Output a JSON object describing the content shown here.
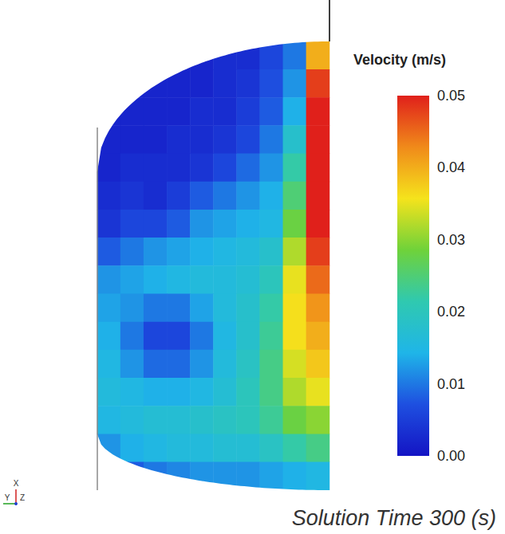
{
  "chart_data": {
    "type": "heatmap",
    "tick_labels": false,
    "annotations": [
      "Solution Time 300 (s)"
    ],
    "axis_triad": [
      "X",
      "Y",
      "Z"
    ],
    "colorbar": {
      "title": "Velocity (m/s)",
      "range": [
        0,
        0.05
      ],
      "ticks": [
        {
          "value": 0,
          "label": "0.00"
        },
        {
          "value": 0.01,
          "label": "0.01"
        },
        {
          "value": 0.02,
          "label": "0.02"
        },
        {
          "value": 0.03,
          "label": "0.03"
        },
        {
          "value": 0.04,
          "label": "0.04"
        },
        {
          "value": 0.05,
          "label": "0.05"
        }
      ]
    },
    "cells": [
      [
        null,
        null,
        null,
        0.002,
        0.002,
        0.003,
        0.003,
        0.006,
        0.01,
        0.04
      ],
      [
        null,
        0.002,
        0.002,
        0.002,
        0.002,
        0.003,
        0.004,
        0.007,
        0.012,
        0.048
      ],
      [
        0.002,
        0.002,
        0.002,
        0.002,
        0.003,
        0.003,
        0.005,
        0.008,
        0.014,
        0.05
      ],
      [
        0.002,
        0.002,
        0.002,
        0.003,
        0.003,
        0.004,
        0.006,
        0.01,
        0.018,
        0.05
      ],
      [
        0.002,
        0.003,
        0.003,
        0.003,
        0.004,
        0.006,
        0.009,
        0.012,
        0.022,
        0.05
      ],
      [
        0.003,
        0.004,
        0.003,
        0.005,
        0.008,
        0.01,
        0.012,
        0.014,
        0.025,
        0.05
      ],
      [
        0.004,
        0.006,
        0.006,
        0.008,
        0.012,
        0.013,
        0.014,
        0.015,
        0.028,
        0.05
      ],
      [
        0.008,
        0.01,
        0.012,
        0.013,
        0.014,
        0.015,
        0.016,
        0.018,
        0.032,
        0.048
      ],
      [
        0.012,
        0.013,
        0.014,
        0.015,
        0.016,
        0.016,
        0.017,
        0.02,
        0.035,
        0.045
      ],
      [
        0.013,
        0.012,
        0.01,
        0.01,
        0.013,
        0.016,
        0.018,
        0.022,
        0.036,
        0.042
      ],
      [
        0.014,
        0.01,
        0.006,
        0.006,
        0.01,
        0.015,
        0.018,
        0.023,
        0.036,
        0.04
      ],
      [
        0.015,
        0.012,
        0.009,
        0.009,
        0.012,
        0.016,
        0.019,
        0.024,
        0.034,
        0.038
      ],
      [
        0.016,
        0.015,
        0.014,
        0.014,
        0.015,
        0.017,
        0.02,
        0.024,
        0.032,
        0.035
      ],
      [
        0.015,
        0.016,
        0.017,
        0.017,
        0.018,
        0.019,
        0.02,
        0.023,
        0.028,
        0.03
      ],
      [
        0.012,
        0.014,
        0.015,
        0.016,
        0.016,
        0.017,
        0.017,
        0.019,
        0.022,
        0.024
      ],
      [
        null,
        0.008,
        0.01,
        0.011,
        0.012,
        0.012,
        0.012,
        0.013,
        0.014,
        0.015
      ]
    ]
  }
}
